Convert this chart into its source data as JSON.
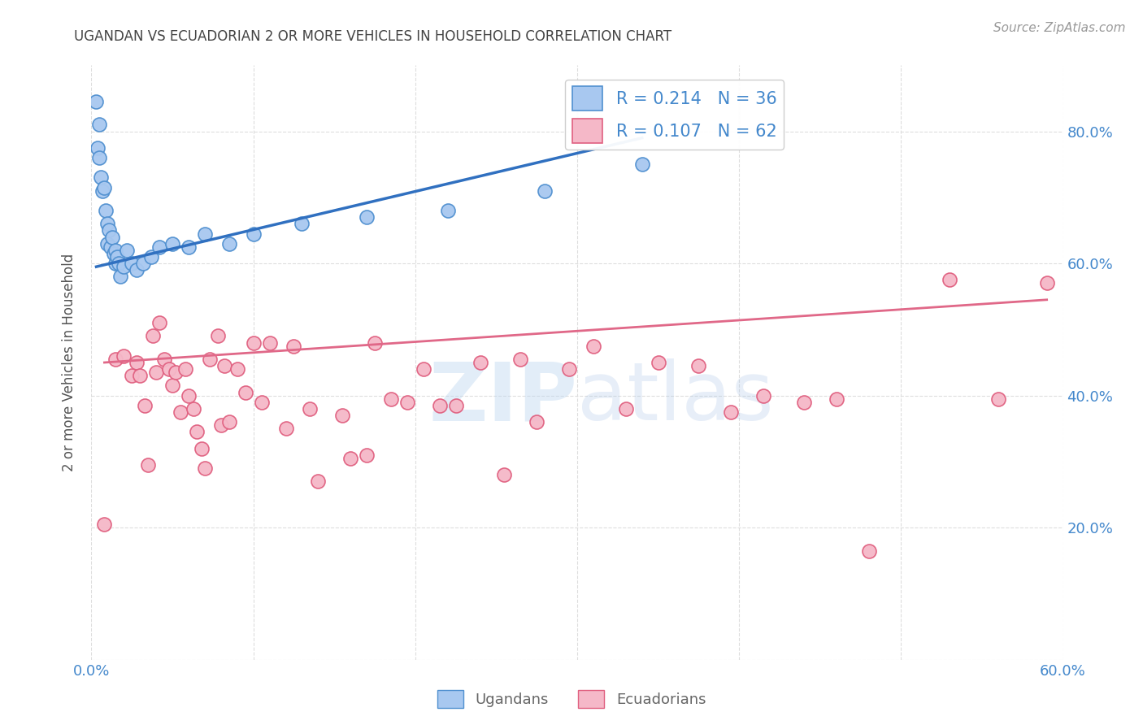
{
  "title": "UGANDAN VS ECUADORIAN 2 OR MORE VEHICLES IN HOUSEHOLD CORRELATION CHART",
  "source": "Source: ZipAtlas.com",
  "ylabel": "2 or more Vehicles in Household",
  "watermark": "ZIPatlas",
  "xmin": 0.0,
  "xmax": 0.6,
  "ymin": 0.0,
  "ymax": 0.9,
  "yticks": [
    0.0,
    0.2,
    0.4,
    0.6,
    0.8
  ],
  "xticks": [
    0.0,
    0.1,
    0.2,
    0.3,
    0.4,
    0.5,
    0.6
  ],
  "legend_R_ugandan": "R = 0.214",
  "legend_N_ugandan": "N = 36",
  "legend_R_ecuadorian": "R = 0.107",
  "legend_N_ecuadorian": "N = 62",
  "ugandan_color": "#a8c8f0",
  "ecuadorian_color": "#f5b8c8",
  "ugandan_edge_color": "#5090d0",
  "ecuadorian_edge_color": "#e06080",
  "ugandan_line_color": "#3070c0",
  "ecuadorian_line_color": "#e06888",
  "background_color": "#ffffff",
  "grid_color": "#dddddd",
  "title_color": "#444444",
  "axis_label_color": "#4488cc",
  "legend_text_color": "#4488cc",
  "ugandan_x": [
    0.003,
    0.004,
    0.005,
    0.005,
    0.006,
    0.007,
    0.008,
    0.009,
    0.01,
    0.01,
    0.011,
    0.012,
    0.013,
    0.014,
    0.015,
    0.015,
    0.016,
    0.017,
    0.018,
    0.02,
    0.022,
    0.025,
    0.028,
    0.032,
    0.037,
    0.042,
    0.05,
    0.06,
    0.07,
    0.085,
    0.1,
    0.13,
    0.17,
    0.22,
    0.28,
    0.34
  ],
  "ugandan_y": [
    0.845,
    0.775,
    0.81,
    0.76,
    0.73,
    0.71,
    0.715,
    0.68,
    0.66,
    0.63,
    0.65,
    0.625,
    0.64,
    0.615,
    0.62,
    0.6,
    0.61,
    0.6,
    0.58,
    0.595,
    0.62,
    0.6,
    0.59,
    0.6,
    0.61,
    0.625,
    0.63,
    0.625,
    0.645,
    0.63,
    0.645,
    0.66,
    0.67,
    0.68,
    0.71,
    0.75
  ],
  "ecuadorian_x": [
    0.008,
    0.015,
    0.02,
    0.025,
    0.028,
    0.03,
    0.033,
    0.035,
    0.038,
    0.04,
    0.042,
    0.045,
    0.048,
    0.05,
    0.052,
    0.055,
    0.058,
    0.06,
    0.063,
    0.065,
    0.068,
    0.07,
    0.073,
    0.078,
    0.08,
    0.082,
    0.085,
    0.09,
    0.095,
    0.1,
    0.105,
    0.11,
    0.12,
    0.125,
    0.135,
    0.14,
    0.155,
    0.16,
    0.17,
    0.175,
    0.185,
    0.195,
    0.205,
    0.215,
    0.225,
    0.24,
    0.255,
    0.265,
    0.275,
    0.295,
    0.31,
    0.33,
    0.35,
    0.375,
    0.395,
    0.415,
    0.44,
    0.46,
    0.48,
    0.53,
    0.56,
    0.59
  ],
  "ecuadorian_y": [
    0.205,
    0.455,
    0.46,
    0.43,
    0.45,
    0.43,
    0.385,
    0.295,
    0.49,
    0.435,
    0.51,
    0.455,
    0.44,
    0.415,
    0.435,
    0.375,
    0.44,
    0.4,
    0.38,
    0.345,
    0.32,
    0.29,
    0.455,
    0.49,
    0.355,
    0.445,
    0.36,
    0.44,
    0.405,
    0.48,
    0.39,
    0.48,
    0.35,
    0.475,
    0.38,
    0.27,
    0.37,
    0.305,
    0.31,
    0.48,
    0.395,
    0.39,
    0.44,
    0.385,
    0.385,
    0.45,
    0.28,
    0.455,
    0.36,
    0.44,
    0.475,
    0.38,
    0.45,
    0.445,
    0.375,
    0.4,
    0.39,
    0.395,
    0.165,
    0.575,
    0.395,
    0.57
  ],
  "ug_line_x0": 0.003,
  "ug_line_y0": 0.595,
  "ug_line_x1": 0.34,
  "ug_line_y1": 0.79,
  "ec_line_x0": 0.008,
  "ec_line_y0": 0.45,
  "ec_line_x1": 0.59,
  "ec_line_y1": 0.545
}
